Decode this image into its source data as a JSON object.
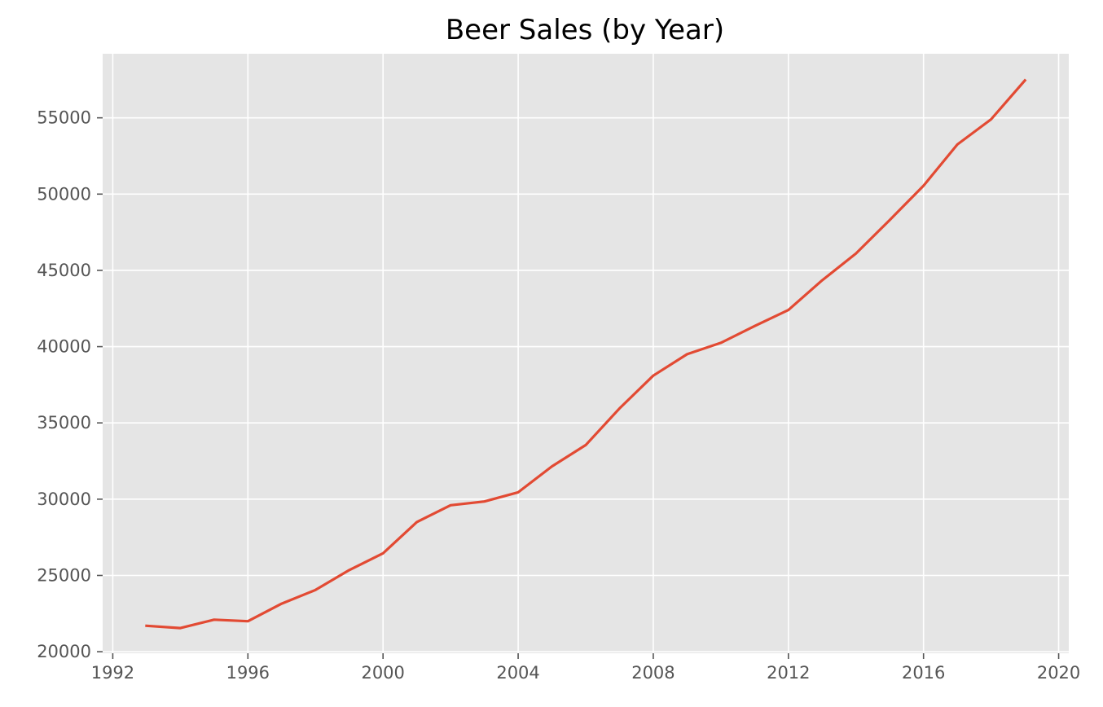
{
  "chart_data": {
    "type": "line",
    "title": "Beer Sales (by Year)",
    "xlabel": "",
    "ylabel": "",
    "xlim": [
      1991.7,
      2020.3
    ],
    "ylim": [
      19900,
      59200
    ],
    "x_ticks": [
      1992,
      1996,
      2000,
      2004,
      2008,
      2012,
      2016,
      2020
    ],
    "y_ticks": [
      20000,
      25000,
      30000,
      35000,
      40000,
      45000,
      50000,
      55000
    ],
    "grid": true,
    "legend": "none",
    "series": [
      {
        "x": [
          1993,
          1994,
          1995,
          1996,
          1997,
          1998,
          1999,
          2000,
          2001,
          2002,
          2003,
          2004,
          2005,
          2006,
          2007,
          2008,
          2009,
          2010,
          2011,
          2012,
          2013,
          2014,
          2015,
          2016,
          2017,
          2018,
          2019
        ],
        "values": [
          21700,
          21550,
          22100,
          22000,
          23150,
          24050,
          25350,
          26450,
          28500,
          29600,
          29850,
          30450,
          32150,
          33550,
          35950,
          38100,
          39500,
          40250,
          41350,
          42400,
          44350,
          46100,
          48300,
          50550,
          53250,
          54900,
          57450
        ],
        "color": "#e24a33"
      }
    ]
  },
  "style": {
    "panel_bg": "#e5e5e5",
    "grid_color": "#ffffff",
    "tick_color": "#555555",
    "line_color": "#e24a33"
  }
}
